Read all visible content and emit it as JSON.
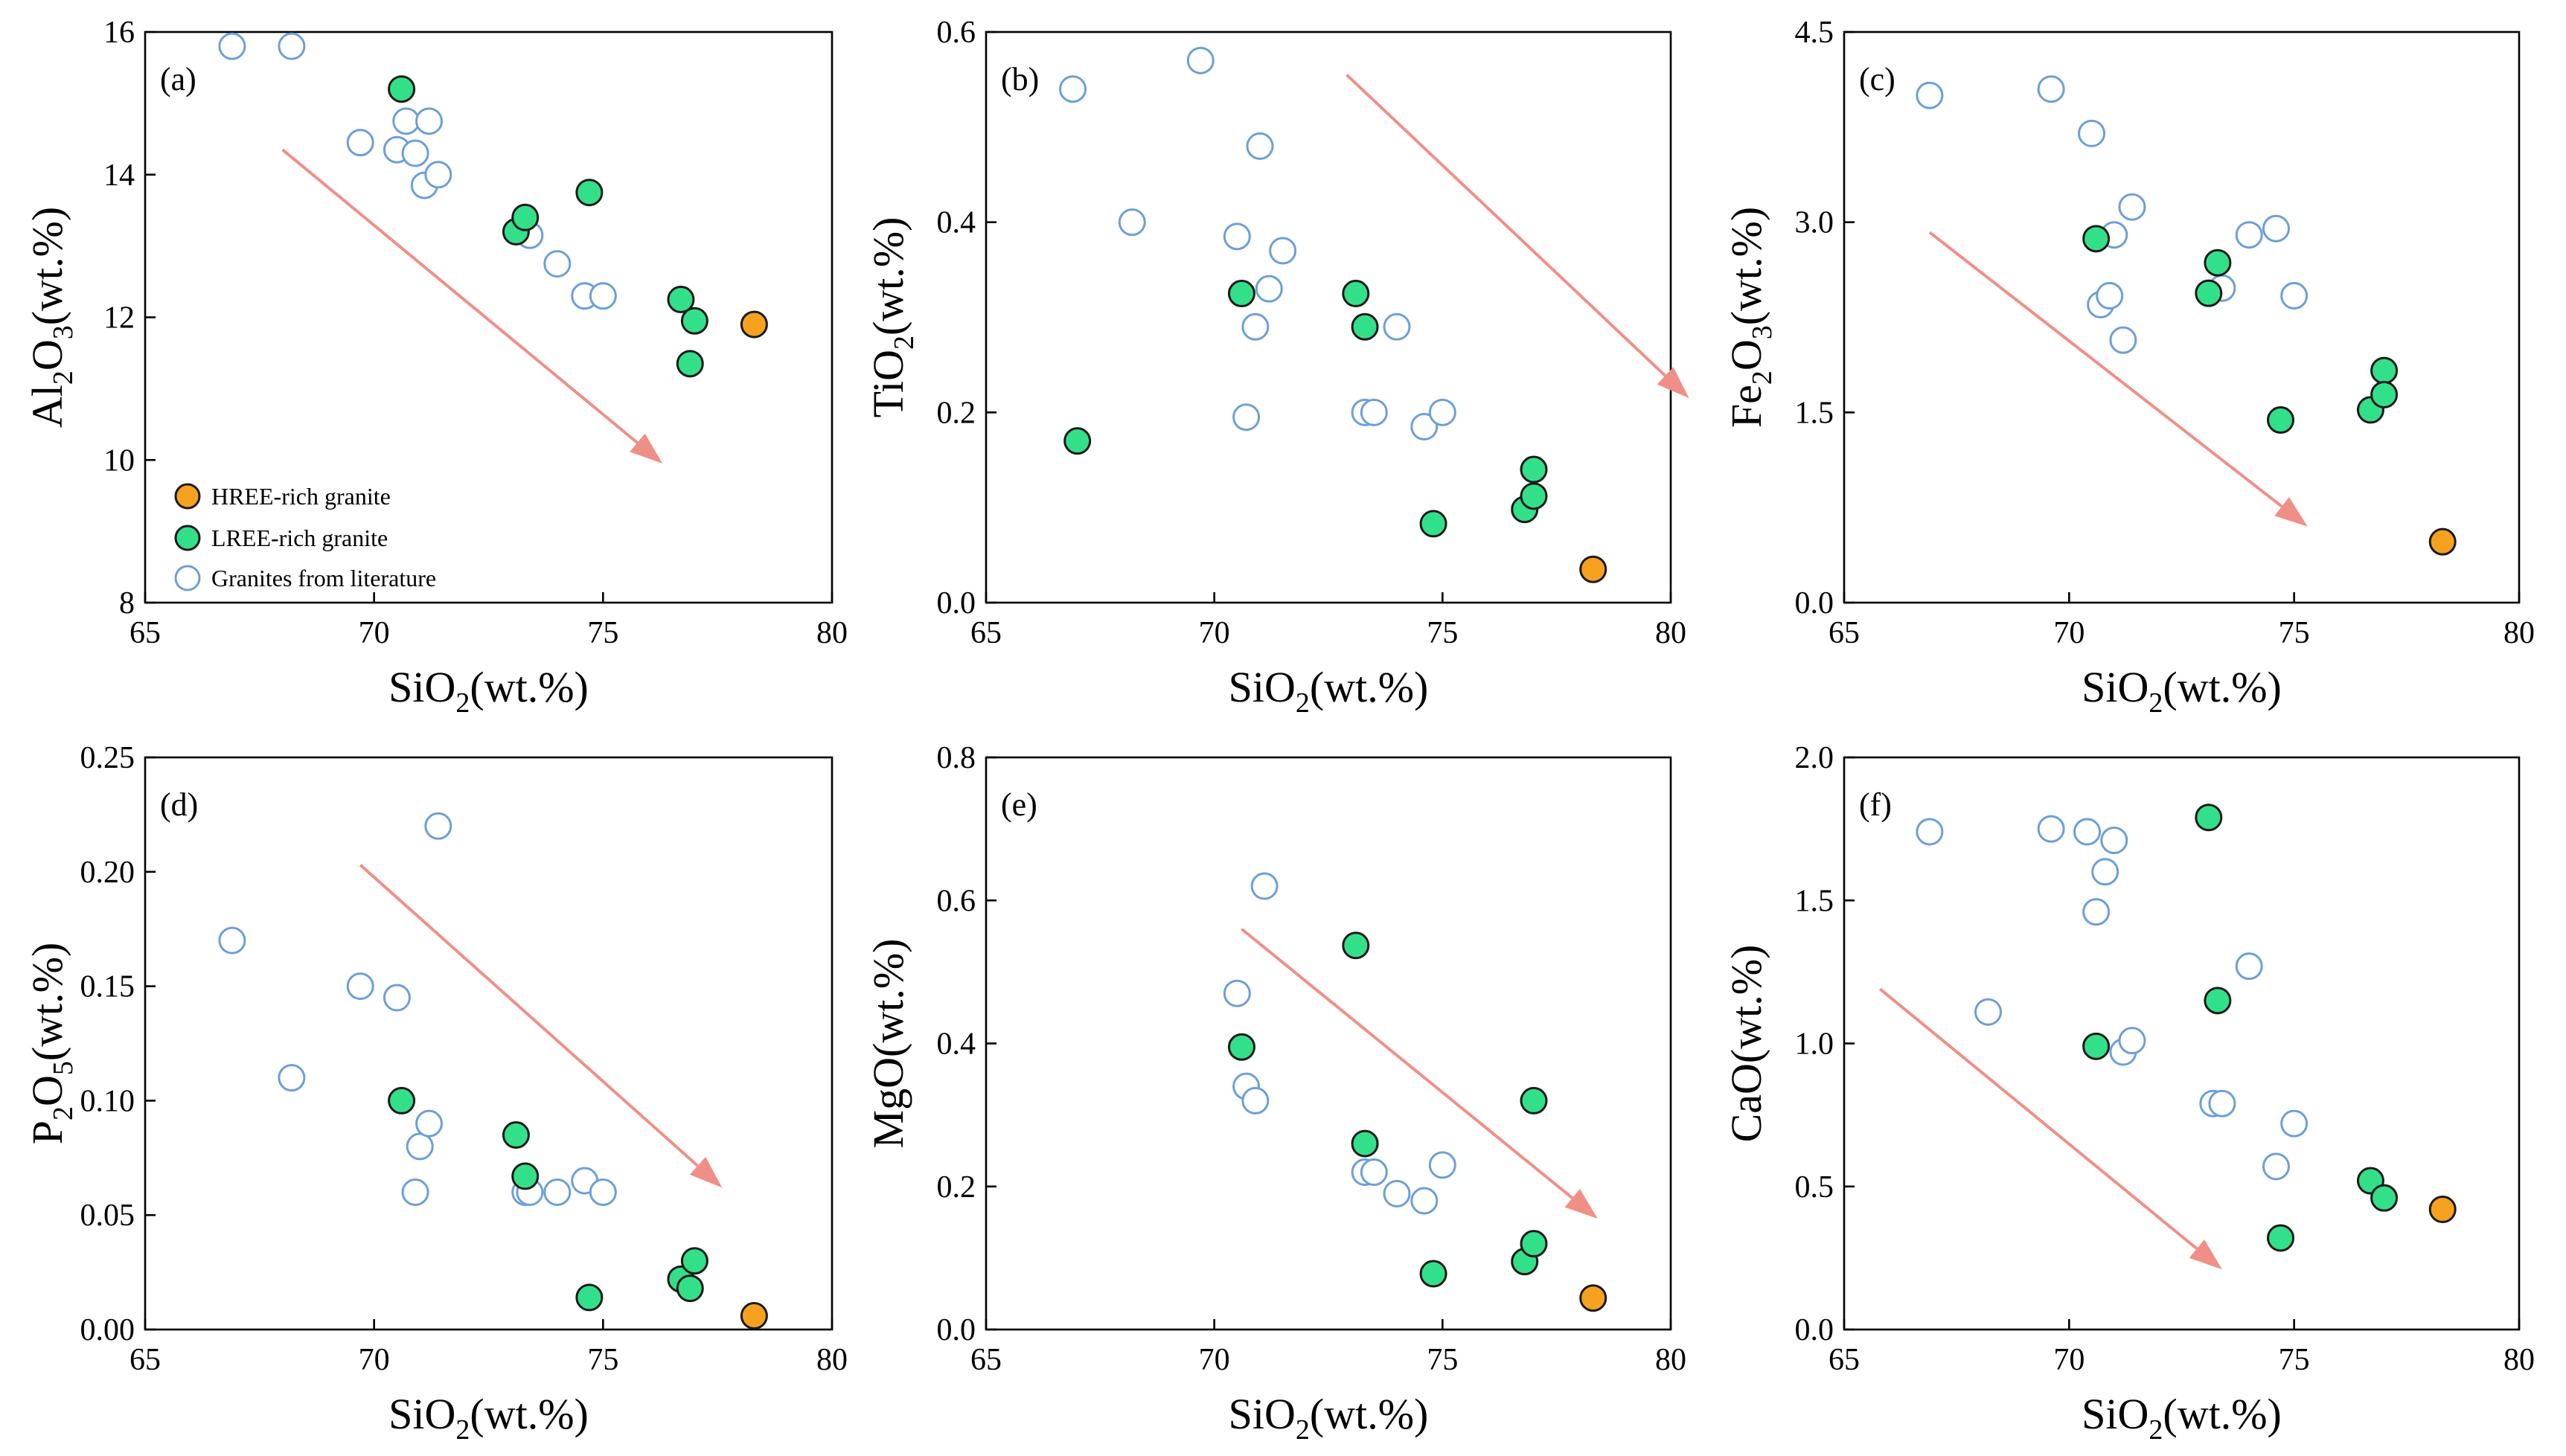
{
  "chart_data": [
    {
      "type": "scatter",
      "panel": "(a)",
      "xlabel": "SiO2(wt.%)",
      "ylabel": "Al2O3(wt.%)",
      "xlim": [
        65,
        80
      ],
      "ylim": [
        8,
        16
      ],
      "xticks": [
        65,
        70,
        75,
        80
      ],
      "yticks": [
        8,
        10,
        12,
        14,
        16
      ],
      "series": [
        {
          "name": "Granites from literature",
          "x": [
            66.9,
            68.2,
            69.7,
            70.5,
            70.7,
            70.9,
            71.1,
            71.2,
            71.4,
            73.4,
            74.0,
            74.6,
            75.0
          ],
          "y": [
            15.8,
            15.8,
            14.45,
            14.35,
            14.75,
            14.3,
            13.85,
            14.75,
            14.0,
            13.15,
            12.75,
            12.3,
            12.3
          ]
        },
        {
          "name": "LREE-rich granite",
          "x": [
            70.6,
            73.1,
            73.3,
            74.7,
            76.7,
            77.0,
            76.9
          ],
          "y": [
            15.2,
            13.2,
            13.4,
            13.75,
            12.25,
            11.95,
            11.35
          ]
        },
        {
          "name": "HREE-rich granite",
          "x": [
            78.3
          ],
          "y": [
            11.9
          ]
        }
      ],
      "arrow": {
        "from": [
          68.0,
          14.35
        ],
        "to": [
          76.3,
          9.95
        ]
      }
    },
    {
      "type": "scatter",
      "panel": "(b)",
      "xlabel": "SiO2(wt.%)",
      "ylabel": "TiO2(wt.%)",
      "xlim": [
        65,
        80
      ],
      "ylim": [
        0,
        0.6
      ],
      "xticks": [
        65,
        70,
        75,
        80
      ],
      "yticks": [
        0.0,
        0.2,
        0.4,
        0.6
      ],
      "series": [
        {
          "name": "Granites from literature",
          "x": [
            66.9,
            68.2,
            69.7,
            70.5,
            70.7,
            70.9,
            71.0,
            71.2,
            71.5,
            73.3,
            73.5,
            74.0,
            74.6,
            75.0
          ],
          "y": [
            0.54,
            0.4,
            0.57,
            0.385,
            0.195,
            0.29,
            0.48,
            0.33,
            0.37,
            0.2,
            0.2,
            0.29,
            0.185,
            0.2
          ]
        },
        {
          "name": "LREE-rich granite",
          "x": [
            67.0,
            70.6,
            73.1,
            73.3,
            74.8,
            76.8,
            77.0,
            77.0
          ],
          "y": [
            0.17,
            0.325,
            0.325,
            0.29,
            0.083,
            0.098,
            0.14,
            0.112
          ]
        },
        {
          "name": "HREE-rich granite",
          "x": [
            78.3
          ],
          "y": [
            0.035
          ]
        }
      ],
      "arrow": {
        "from": [
          72.9,
          0.555
        ],
        "to": [
          80.4,
          0.215
        ]
      }
    },
    {
      "type": "scatter",
      "panel": "(c)",
      "xlabel": "SiO2(wt.%)",
      "ylabel": "Fe2O3(wt.%)",
      "xlim": [
        65,
        80
      ],
      "ylim": [
        0,
        4.5
      ],
      "xticks": [
        65,
        70,
        75,
        80
      ],
      "yticks": [
        0.0,
        1.5,
        3.0,
        4.5
      ],
      "series": [
        {
          "name": "Granites from literature",
          "x": [
            66.9,
            69.6,
            70.5,
            70.7,
            70.9,
            71.0,
            71.2,
            71.4,
            74.0,
            73.4,
            74.6,
            75.0
          ],
          "y": [
            4.0,
            4.05,
            3.7,
            2.35,
            2.42,
            2.9,
            2.07,
            3.12,
            2.9,
            2.48,
            2.95,
            2.42
          ]
        },
        {
          "name": "LREE-rich granite",
          "x": [
            70.6,
            73.1,
            73.3,
            74.7,
            76.7,
            77.0,
            77.0
          ],
          "y": [
            2.87,
            2.44,
            2.68,
            1.44,
            1.52,
            1.83,
            1.64
          ]
        },
        {
          "name": "HREE-rich granite",
          "x": [
            78.3
          ],
          "y": [
            0.48
          ]
        }
      ],
      "arrow": {
        "from": [
          66.9,
          2.92
        ],
        "to": [
          75.3,
          0.6
        ]
      }
    },
    {
      "type": "scatter",
      "panel": "(d)",
      "xlabel": "SiO2(wt.%)",
      "ylabel": "P2O5(wt.%)",
      "xlim": [
        65,
        80
      ],
      "ylim": [
        0,
        0.25
      ],
      "xticks": [
        65,
        70,
        75,
        80
      ],
      "yticks": [
        0.0,
        0.05,
        0.1,
        0.15,
        0.2,
        0.25
      ],
      "series": [
        {
          "name": "Granites from literature",
          "x": [
            66.9,
            68.2,
            69.7,
            70.5,
            70.9,
            71.0,
            71.2,
            71.4,
            73.3,
            73.4,
            74.0,
            74.6,
            75.0
          ],
          "y": [
            0.17,
            0.11,
            0.15,
            0.145,
            0.06,
            0.08,
            0.09,
            0.22,
            0.06,
            0.06,
            0.06,
            0.065,
            0.06
          ]
        },
        {
          "name": "LREE-rich granite",
          "x": [
            70.6,
            73.1,
            73.3,
            74.7,
            76.7,
            77.0,
            76.9
          ],
          "y": [
            0.1,
            0.085,
            0.067,
            0.014,
            0.022,
            0.03,
            0.018
          ]
        },
        {
          "name": "HREE-rich granite",
          "x": [
            78.3
          ],
          "y": [
            0.006
          ]
        }
      ],
      "arrow": {
        "from": [
          69.7,
          0.203
        ],
        "to": [
          77.6,
          0.062
        ]
      }
    },
    {
      "type": "scatter",
      "panel": "(e)",
      "xlabel": "SiO2(wt.%)",
      "ylabel": "MgO(wt.%)",
      "xlim": [
        65,
        80
      ],
      "ylim": [
        0,
        0.8
      ],
      "xticks": [
        65,
        70,
        75,
        80
      ],
      "yticks": [
        0.0,
        0.2,
        0.4,
        0.6,
        0.8
      ],
      "series": [
        {
          "name": "Granites from literature",
          "x": [
            70.5,
            70.7,
            70.9,
            71.1,
            73.3,
            73.5,
            74.0,
            74.6,
            75.0
          ],
          "y": [
            0.47,
            0.34,
            0.32,
            0.62,
            0.22,
            0.22,
            0.19,
            0.18,
            0.23
          ]
        },
        {
          "name": "LREE-rich granite",
          "x": [
            70.6,
            73.1,
            73.3,
            74.8,
            76.8,
            77.0,
            77.0
          ],
          "y": [
            0.395,
            0.537,
            0.26,
            0.078,
            0.095,
            0.12,
            0.32
          ]
        },
        {
          "name": "HREE-rich granite",
          "x": [
            78.3
          ],
          "y": [
            0.044
          ]
        }
      ],
      "arrow": {
        "from": [
          70.6,
          0.56
        ],
        "to": [
          78.4,
          0.155
        ]
      }
    },
    {
      "type": "scatter",
      "panel": "(f)",
      "xlabel": "SiO2(wt.%)",
      "ylabel": "CaO(wt.%)",
      "xlim": [
        65,
        80
      ],
      "ylim": [
        0,
        2.0
      ],
      "xticks": [
        65,
        70,
        75,
        80
      ],
      "yticks": [
        0.0,
        0.5,
        1.0,
        1.5,
        2.0
      ],
      "series": [
        {
          "name": "Granites from literature",
          "x": [
            66.9,
            68.2,
            69.6,
            70.4,
            70.6,
            70.8,
            71.0,
            71.2,
            71.4,
            73.2,
            73.4,
            74.0,
            74.6,
            75.0
          ],
          "y": [
            1.74,
            1.11,
            1.75,
            1.74,
            1.46,
            1.6,
            1.71,
            0.97,
            1.01,
            0.79,
            0.79,
            1.27,
            0.57,
            0.72
          ]
        },
        {
          "name": "LREE-rich granite",
          "x": [
            70.6,
            73.1,
            73.3,
            74.7,
            76.7,
            77.0
          ],
          "y": [
            0.99,
            1.79,
            1.15,
            0.32,
            0.52,
            0.46
          ]
        },
        {
          "name": "HREE-rich granite",
          "x": [
            78.3
          ],
          "y": [
            0.42
          ]
        }
      ],
      "arrow": {
        "from": [
          65.8,
          1.19
        ],
        "to": [
          73.4,
          0.21
        ]
      }
    }
  ],
  "legend": {
    "items": [
      {
        "label": "HREE-rich granite",
        "style": "hree"
      },
      {
        "label": "LREE-rich granite",
        "style": "lree"
      },
      {
        "label": "Granites from literature",
        "style": "lit"
      }
    ]
  },
  "colors": {
    "hree_fill": "#f6a21e",
    "lree_fill": "#33e08a",
    "marker_edge": "#1a1a1a",
    "literature_edge": "#6c9fd8",
    "arrow": "#f08f86"
  },
  "axis_title_parts": {
    "x": [
      "SiO",
      "2",
      "(wt.%)"
    ],
    "y": [
      [
        "Al",
        "2",
        "O",
        "3",
        "(wt.%)"
      ],
      [
        "TiO",
        "2",
        "(wt.%)"
      ],
      [
        "Fe",
        "2",
        "O",
        "3",
        "(wt.%)"
      ],
      [
        "P",
        "2",
        "O",
        "5",
        "(wt.%)"
      ],
      [
        "MgO(wt.%)"
      ],
      [
        "CaO(wt.%)"
      ]
    ]
  }
}
